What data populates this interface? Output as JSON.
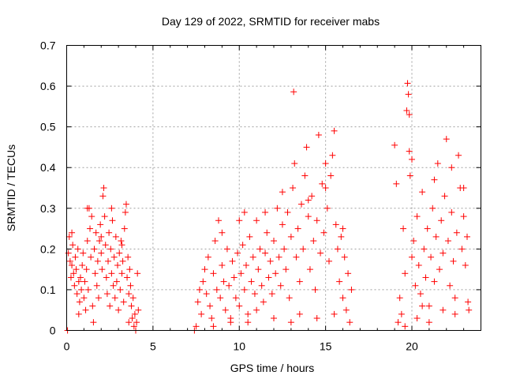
{
  "chart_data": {
    "type": "scatter",
    "title": "Day 129 of 2022, SRMTID for receiver mabs",
    "xlabel": "GPS time / hours",
    "ylabel": "SRMTID / TECUs",
    "xlim": [
      0,
      24
    ],
    "ylim": [
      0,
      0.7
    ],
    "x_ticks": [
      0,
      5,
      10,
      15,
      20
    ],
    "x_tick_labels": [
      "0",
      "5",
      "10",
      "15",
      "20"
    ],
    "y_ticks": [
      0,
      0.1,
      0.2,
      0.3,
      0.4,
      0.5,
      0.6,
      0.7
    ],
    "y_tick_labels": [
      "0",
      "0.1",
      "0.2",
      "0.3",
      "0.4",
      "0.5",
      "0.6",
      "0.7"
    ],
    "grid": true,
    "marker": "plus",
    "color": "#ff0000",
    "series": [
      {
        "name": "SRMTID",
        "points": [
          [
            0.05,
            0.0
          ],
          [
            0.1,
            0.19
          ],
          [
            0.15,
            0.23
          ],
          [
            0.2,
            0.17
          ],
          [
            0.25,
            0.13
          ],
          [
            0.3,
            0.16
          ],
          [
            0.35,
            0.21
          ],
          [
            0.4,
            0.14
          ],
          [
            0.45,
            0.11
          ],
          [
            0.5,
            0.18
          ],
          [
            0.55,
            0.15
          ],
          [
            0.6,
            0.09
          ],
          [
            0.65,
            0.2
          ],
          [
            0.7,
            0.12
          ],
          [
            0.75,
            0.07
          ],
          [
            0.8,
            0.13
          ],
          [
            0.85,
            0.1
          ],
          [
            0.9,
            0.16
          ],
          [
            0.95,
            0.19
          ],
          [
            1.0,
            0.08
          ],
          [
            1.05,
            0.12
          ],
          [
            1.1,
            0.05
          ],
          [
            1.15,
            0.15
          ],
          [
            1.2,
            0.22
          ],
          [
            1.25,
            0.1
          ],
          [
            1.3,
            0.3
          ],
          [
            1.35,
            0.25
          ],
          [
            1.4,
            0.18
          ],
          [
            1.45,
            0.28
          ],
          [
            1.5,
            0.06
          ],
          [
            1.55,
            0.02
          ],
          [
            1.6,
            0.2
          ],
          [
            1.65,
            0.14
          ],
          [
            1.7,
            0.24
          ],
          [
            1.75,
            0.11
          ],
          [
            1.8,
            0.17
          ],
          [
            1.85,
            0.08
          ],
          [
            1.9,
            0.22
          ],
          [
            1.95,
            0.26
          ],
          [
            2.0,
            0.19
          ],
          [
            2.05,
            0.15
          ],
          [
            2.1,
            0.33
          ],
          [
            2.15,
            0.35
          ],
          [
            2.2,
            0.28
          ],
          [
            2.25,
            0.21
          ],
          [
            2.3,
            0.13
          ],
          [
            2.35,
            0.09
          ],
          [
            2.4,
            0.17
          ],
          [
            2.45,
            0.24
          ],
          [
            2.5,
            0.06
          ],
          [
            2.55,
            0.2
          ],
          [
            2.6,
            0.14
          ],
          [
            2.65,
            0.27
          ],
          [
            2.7,
            0.11
          ],
          [
            2.75,
            0.18
          ],
          [
            2.8,
            0.08
          ],
          [
            2.85,
            0.23
          ],
          [
            2.9,
            0.12
          ],
          [
            2.95,
            0.16
          ],
          [
            3.0,
            0.05
          ],
          [
            3.05,
            0.19
          ],
          [
            3.1,
            0.1
          ],
          [
            3.15,
            0.22
          ],
          [
            3.2,
            0.14
          ],
          [
            3.25,
            0.17
          ],
          [
            3.3,
            0.07
          ],
          [
            3.35,
            0.25
          ],
          [
            3.4,
            0.29
          ],
          [
            3.45,
            0.31
          ],
          [
            3.5,
            0.13
          ],
          [
            3.55,
            0.18
          ],
          [
            3.6,
            0.09
          ],
          [
            3.65,
            0.15
          ],
          [
            3.7,
            0.11
          ],
          [
            3.75,
            0.06
          ],
          [
            3.8,
            0.03
          ],
          [
            3.85,
            0.08
          ],
          [
            3.9,
            0.01
          ],
          [
            3.95,
            0.04
          ],
          [
            4.0,
            0.0
          ],
          [
            4.05,
            0.02
          ],
          [
            4.1,
            0.14
          ],
          [
            4.15,
            0.05
          ],
          [
            0.3,
            0.24
          ],
          [
            0.7,
            0.04
          ],
          [
            1.2,
            0.3
          ],
          [
            2.0,
            0.23
          ],
          [
            2.6,
            0.3
          ],
          [
            3.2,
            0.21
          ],
          [
            3.6,
            0.02
          ],
          [
            7.4,
            0.0
          ],
          [
            7.5,
            0.01
          ],
          [
            7.6,
            0.07
          ],
          [
            7.7,
            0.1
          ],
          [
            7.8,
            0.04
          ],
          [
            7.9,
            0.12
          ],
          [
            8.0,
            0.15
          ],
          [
            8.1,
            0.09
          ],
          [
            8.2,
            0.18
          ],
          [
            8.3,
            0.06
          ],
          [
            8.4,
            0.03
          ],
          [
            8.5,
            0.14
          ],
          [
            8.6,
            0.22
          ],
          [
            8.7,
            0.1
          ],
          [
            8.8,
            0.27
          ],
          [
            8.9,
            0.08
          ],
          [
            9.0,
            0.16
          ],
          [
            9.1,
            0.12
          ],
          [
            9.2,
            0.05
          ],
          [
            9.3,
            0.2
          ],
          [
            9.4,
            0.11
          ],
          [
            9.5,
            0.02
          ],
          [
            9.6,
            0.17
          ],
          [
            9.7,
            0.13
          ],
          [
            9.8,
            0.08
          ],
          [
            9.9,
            0.19
          ],
          [
            10.0,
            0.06
          ],
          [
            10.1,
            0.14
          ],
          [
            10.2,
            0.21
          ],
          [
            10.3,
            0.1
          ],
          [
            10.4,
            0.16
          ],
          [
            10.5,
            0.04
          ],
          [
            10.6,
            0.23
          ],
          [
            10.7,
            0.12
          ],
          [
            10.8,
            0.18
          ],
          [
            10.9,
            0.09
          ],
          [
            11.0,
            0.27
          ],
          [
            11.1,
            0.15
          ],
          [
            11.2,
            0.2
          ],
          [
            11.3,
            0.11
          ],
          [
            11.4,
            0.07
          ],
          [
            11.5,
            0.19
          ],
          [
            11.6,
            0.24
          ],
          [
            11.7,
            0.13
          ],
          [
            11.8,
            0.17
          ],
          [
            11.9,
            0.09
          ],
          [
            12.0,
            0.22
          ],
          [
            12.1,
            0.14
          ],
          [
            12.2,
            0.3
          ],
          [
            12.3,
            0.18
          ],
          [
            12.4,
            0.11
          ],
          [
            12.5,
            0.26
          ],
          [
            12.6,
            0.2
          ],
          [
            12.7,
            0.15
          ],
          [
            12.8,
            0.29
          ],
          [
            12.9,
            0.08
          ],
          [
            13.0,
            0.23
          ],
          [
            13.1,
            0.35
          ],
          [
            13.15,
            0.586
          ],
          [
            13.2,
            0.41
          ],
          [
            13.3,
            0.18
          ],
          [
            13.4,
            0.25
          ],
          [
            13.5,
            0.12
          ],
          [
            13.6,
            0.31
          ],
          [
            13.7,
            0.2
          ],
          [
            13.8,
            0.38
          ],
          [
            13.9,
            0.45
          ],
          [
            14.0,
            0.28
          ],
          [
            14.1,
            0.15
          ],
          [
            14.2,
            0.33
          ],
          [
            14.3,
            0.22
          ],
          [
            14.4,
            0.1
          ],
          [
            14.5,
            0.27
          ],
          [
            14.6,
            0.48
          ],
          [
            14.7,
            0.19
          ],
          [
            14.8,
            0.36
          ],
          [
            14.9,
            0.24
          ],
          [
            15.0,
            0.41
          ],
          [
            15.1,
            0.3
          ],
          [
            15.2,
            0.17
          ],
          [
            15.3,
            0.38
          ],
          [
            15.4,
            0.43
          ],
          [
            15.5,
            0.49
          ],
          [
            15.6,
            0.26
          ],
          [
            15.7,
            0.2
          ],
          [
            15.8,
            0.12
          ],
          [
            15.9,
            0.23
          ],
          [
            16.0,
            0.08
          ],
          [
            16.1,
            0.18
          ],
          [
            16.2,
            0.05
          ],
          [
            16.3,
            0.14
          ],
          [
            16.4,
            0.02
          ],
          [
            16.5,
            0.1
          ],
          [
            8.5,
            0.01
          ],
          [
            9.5,
            0.03
          ],
          [
            10.5,
            0.02
          ],
          [
            11.0,
            0.05
          ],
          [
            12.0,
            0.03
          ],
          [
            13.5,
            0.04
          ],
          [
            14.5,
            0.03
          ],
          [
            15.5,
            0.04
          ],
          [
            9.0,
            0.24
          ],
          [
            10.0,
            0.27
          ],
          [
            11.5,
            0.29
          ],
          [
            12.5,
            0.34
          ],
          [
            14.0,
            0.32
          ],
          [
            15.0,
            0.35
          ],
          [
            16.0,
            0.25
          ],
          [
            13.0,
            0.02
          ],
          [
            10.3,
            0.29
          ],
          [
            19.0,
            0.455
          ],
          [
            19.1,
            0.36
          ],
          [
            19.2,
            0.02
          ],
          [
            19.3,
            0.08
          ],
          [
            19.4,
            0.04
          ],
          [
            19.5,
            0.25
          ],
          [
            19.6,
            0.14
          ],
          [
            19.7,
            0.54
          ],
          [
            19.75,
            0.607
          ],
          [
            19.8,
            0.58
          ],
          [
            19.85,
            0.44
          ],
          [
            19.9,
            0.38
          ],
          [
            20.0,
            0.18
          ],
          [
            20.1,
            0.22
          ],
          [
            20.2,
            0.11
          ],
          [
            20.3,
            0.28
          ],
          [
            20.4,
            0.16
          ],
          [
            20.5,
            0.09
          ],
          [
            20.6,
            0.34
          ],
          [
            20.7,
            0.2
          ],
          [
            20.8,
            0.13
          ],
          [
            20.9,
            0.25
          ],
          [
            21.0,
            0.06
          ],
          [
            21.1,
            0.18
          ],
          [
            21.2,
            0.3
          ],
          [
            21.3,
            0.12
          ],
          [
            21.4,
            0.23
          ],
          [
            21.5,
            0.41
          ],
          [
            21.6,
            0.15
          ],
          [
            21.7,
            0.27
          ],
          [
            21.8,
            0.19
          ],
          [
            21.9,
            0.33
          ],
          [
            22.0,
            0.47
          ],
          [
            22.1,
            0.22
          ],
          [
            22.2,
            0.11
          ],
          [
            22.3,
            0.29
          ],
          [
            22.4,
            0.17
          ],
          [
            22.5,
            0.08
          ],
          [
            22.6,
            0.24
          ],
          [
            22.7,
            0.43
          ],
          [
            22.8,
            0.35
          ],
          [
            22.9,
            0.2
          ],
          [
            23.0,
            0.28
          ],
          [
            23.1,
            0.16
          ],
          [
            23.2,
            0.23
          ],
          [
            23.25,
            0.07
          ],
          [
            23.3,
            0.05
          ],
          [
            19.6,
            0.01
          ],
          [
            20.3,
            0.03
          ],
          [
            21.0,
            0.02
          ],
          [
            21.8,
            0.05
          ],
          [
            22.5,
            0.04
          ],
          [
            19.85,
            0.53
          ],
          [
            20.0,
            0.42
          ],
          [
            21.3,
            0.37
          ],
          [
            22.3,
            0.4
          ],
          [
            23.0,
            0.35
          ],
          [
            20.6,
            0.06
          ]
        ]
      }
    ]
  }
}
